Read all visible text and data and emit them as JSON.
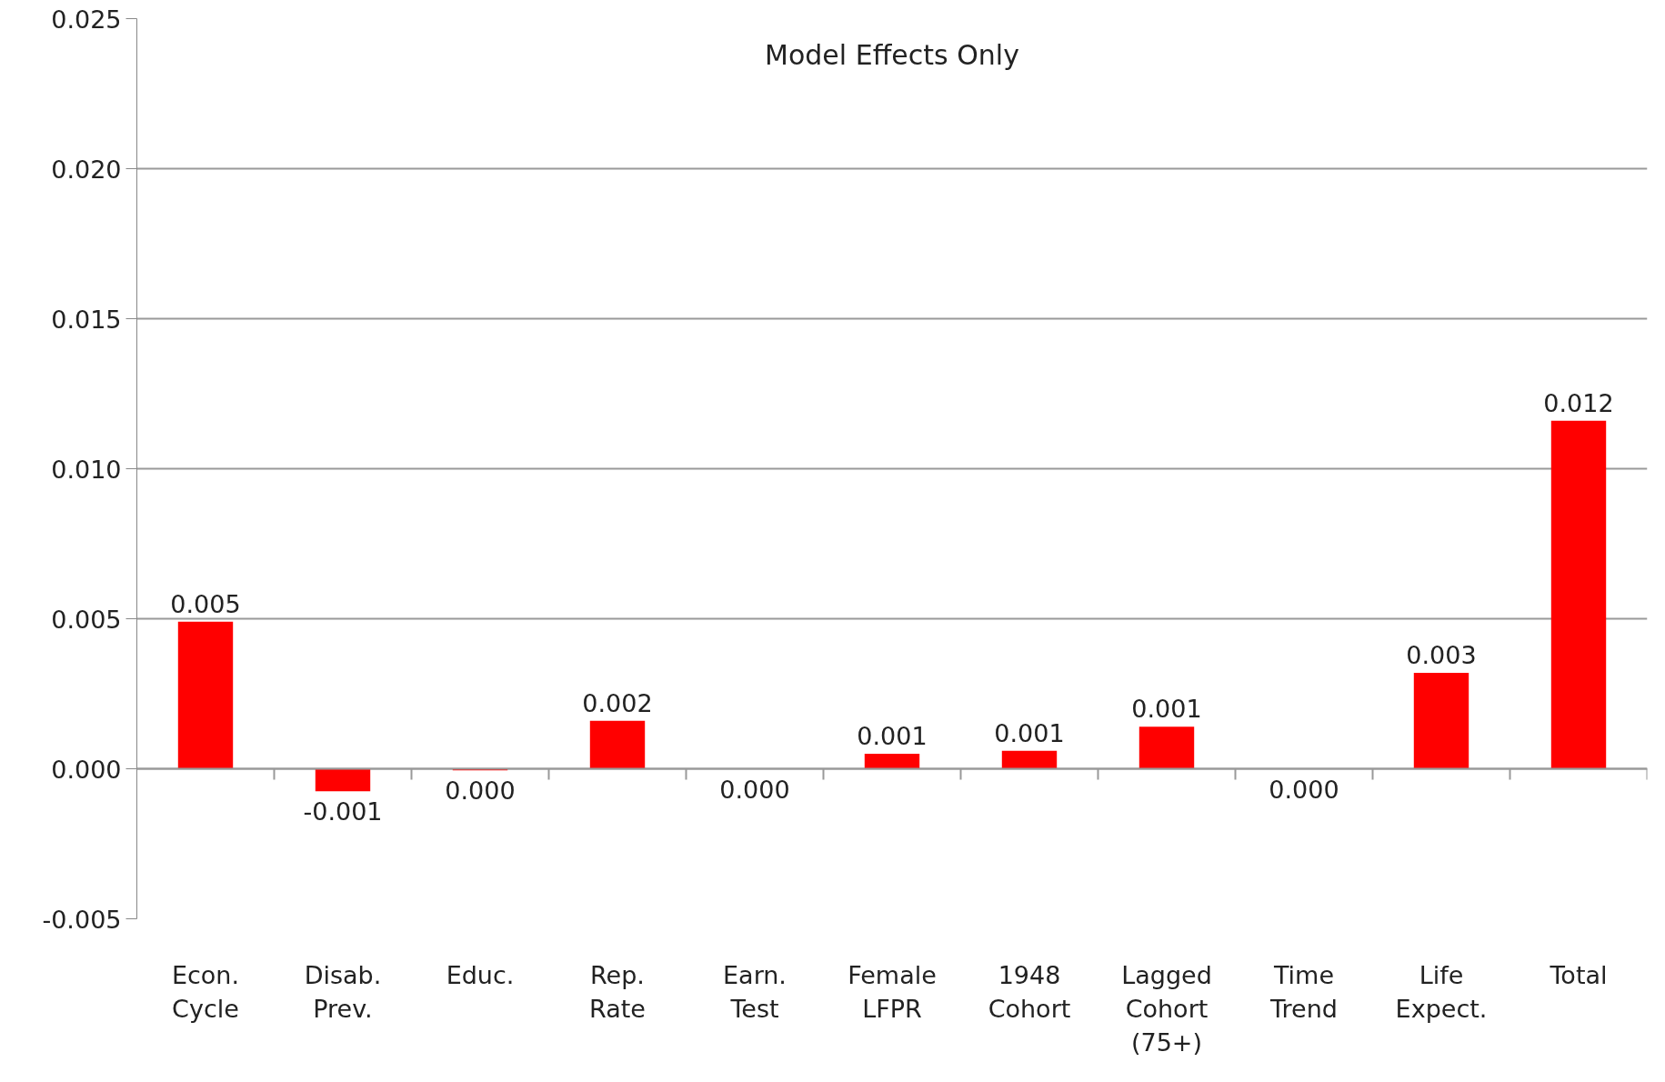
{
  "chart_data": {
    "type": "bar",
    "title": "Model Effects Only",
    "categories": [
      "Econ.\nCycle",
      "Disab.\nPrev.",
      "Educ.",
      "Rep.\nRate",
      "Earn.\nTest",
      "Female\nLFPR",
      "1948\nCohort",
      "Lagged\nCohort\n(75+)",
      "Time\nTrend",
      "Life\nExpect.",
      "Total"
    ],
    "values": [
      0.0049,
      -0.00075,
      -5e-05,
      0.0016,
      0.0,
      0.0005,
      0.0006,
      0.0014,
      0.0,
      0.0032,
      0.0116
    ],
    "value_labels": [
      "0.005",
      "-0.001",
      "0.000",
      "0.002",
      "0.000",
      "0.001",
      "0.001",
      "0.001",
      "0.000",
      "0.003",
      "0.012"
    ],
    "color": "#ff0000",
    "ylim": [
      -0.005,
      0.025
    ],
    "yticks": [
      {
        "value": -0.005,
        "label": "-0.005"
      },
      {
        "value": 0,
        "label": "0.000"
      },
      {
        "value": 0.005,
        "label": "0.005"
      },
      {
        "value": 0.01,
        "label": "0.010"
      },
      {
        "value": 0.015,
        "label": "0.015"
      },
      {
        "value": 0.02,
        "label": "0.020"
      },
      {
        "value": 0.025,
        "label": "0.025"
      }
    ],
    "grid": "y"
  }
}
